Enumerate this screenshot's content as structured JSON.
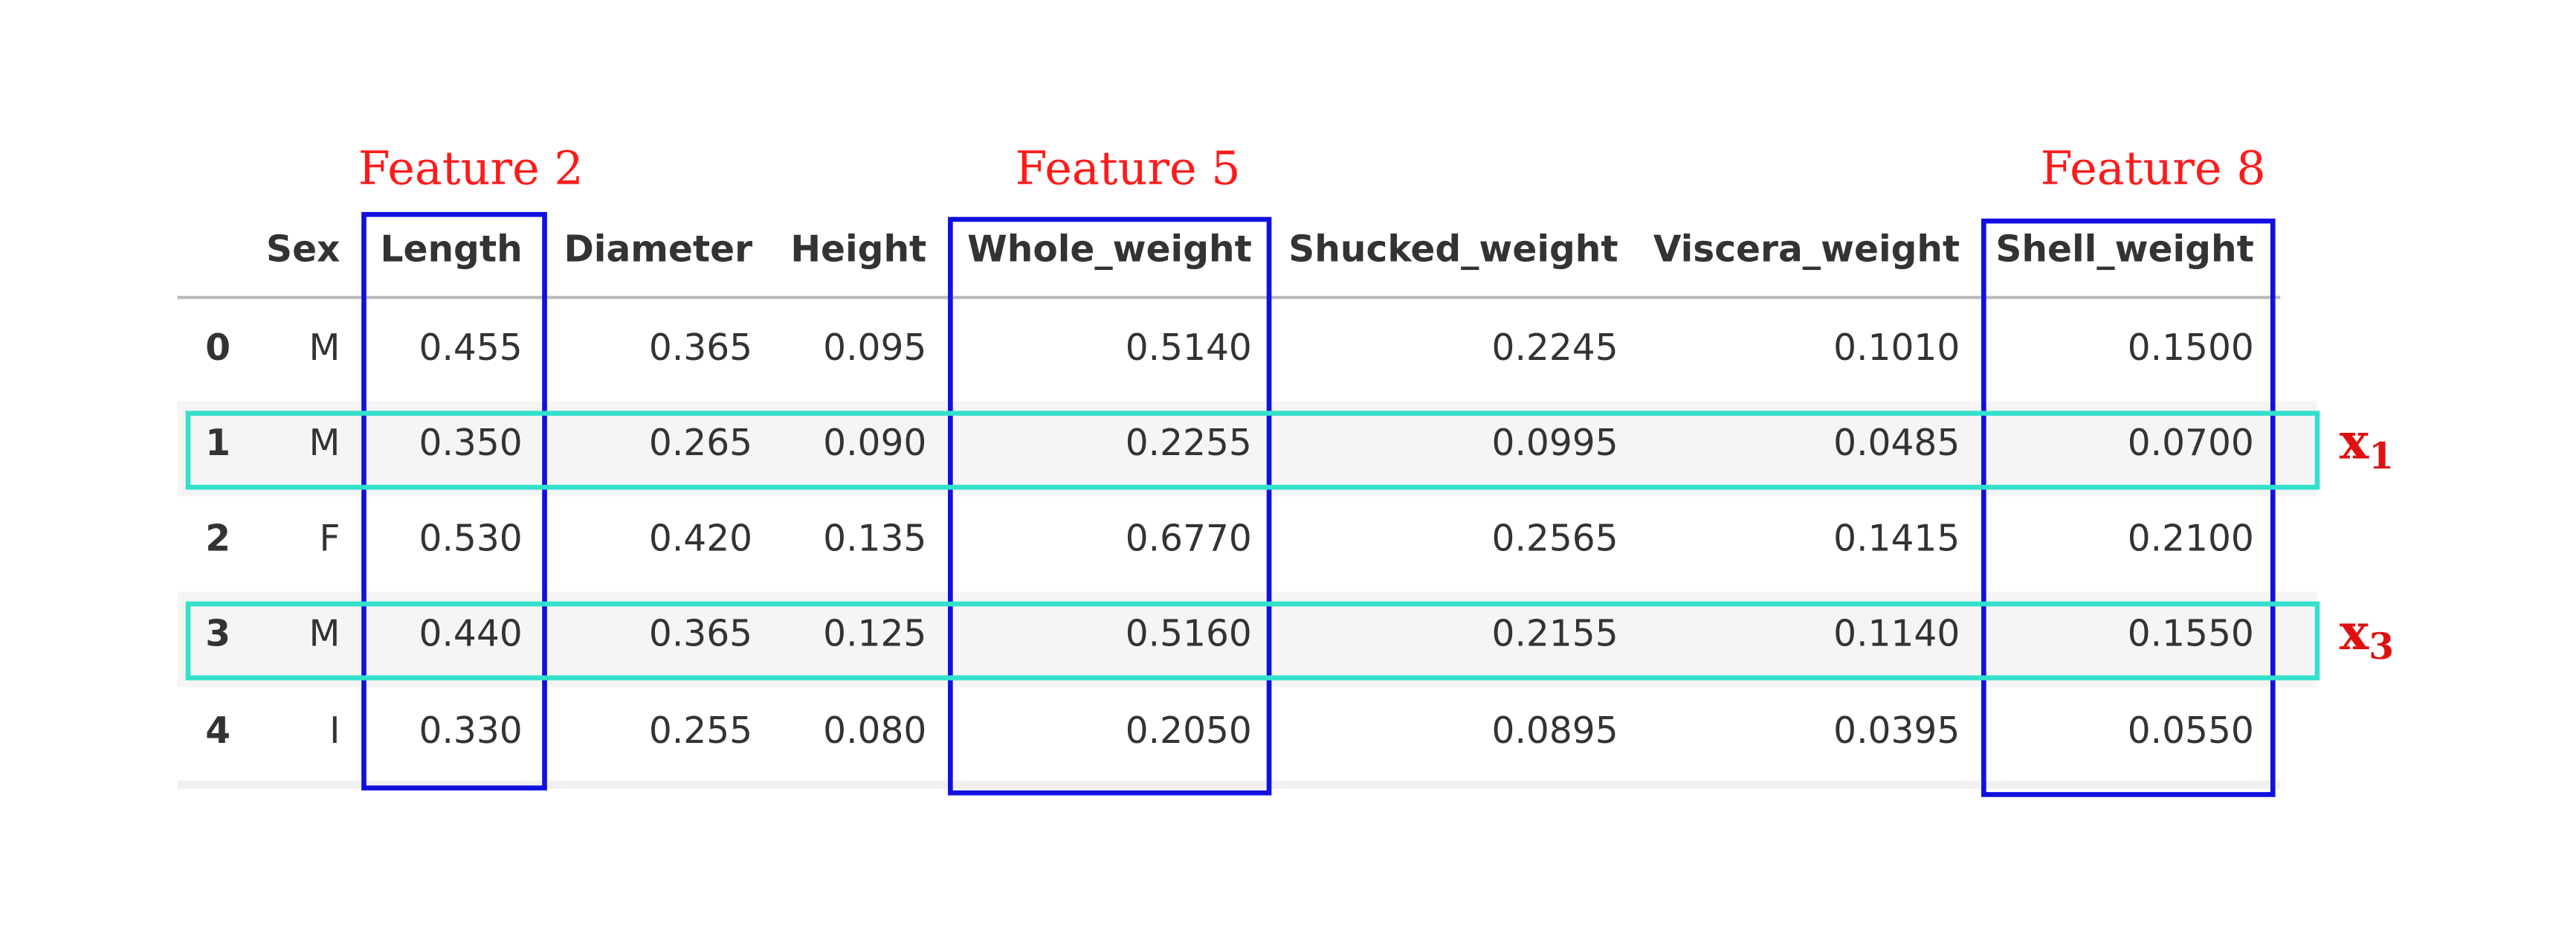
{
  "table": {
    "columns": [
      "",
      "Sex",
      "Length",
      "Diameter",
      "Height",
      "Whole_weight",
      "Shucked_weight",
      "Viscera_weight",
      "Shell_weight"
    ],
    "rows": [
      {
        "index": "0",
        "values": [
          "M",
          "0.455",
          "0.365",
          "0.095",
          "0.5140",
          "0.2245",
          "0.1010",
          "0.1500"
        ]
      },
      {
        "index": "1",
        "values": [
          "M",
          "0.350",
          "0.265",
          "0.090",
          "0.2255",
          "0.0995",
          "0.0485",
          "0.0700"
        ]
      },
      {
        "index": "2",
        "values": [
          "F",
          "0.530",
          "0.420",
          "0.135",
          "0.6770",
          "0.2565",
          "0.1415",
          "0.2100"
        ]
      },
      {
        "index": "3",
        "values": [
          "M",
          "0.440",
          "0.365",
          "0.125",
          "0.5160",
          "0.2155",
          "0.1140",
          "0.1550"
        ]
      },
      {
        "index": "4",
        "values": [
          "I",
          "0.330",
          "0.255",
          "0.080",
          "0.2050",
          "0.0895",
          "0.0395",
          "0.0550"
        ]
      }
    ]
  },
  "annotations": {
    "feature_labels": [
      "Feature 2",
      "Feature 5",
      "Feature 8"
    ],
    "row_labels": [
      {
        "base": "x",
        "sub": "1"
      },
      {
        "base": "x",
        "sub": "3"
      }
    ],
    "colors": {
      "feature_box": "#1010e0",
      "row_box": "#33e0cc",
      "label_text": "#ff1a1a",
      "row_label_text": "#e01010"
    }
  }
}
